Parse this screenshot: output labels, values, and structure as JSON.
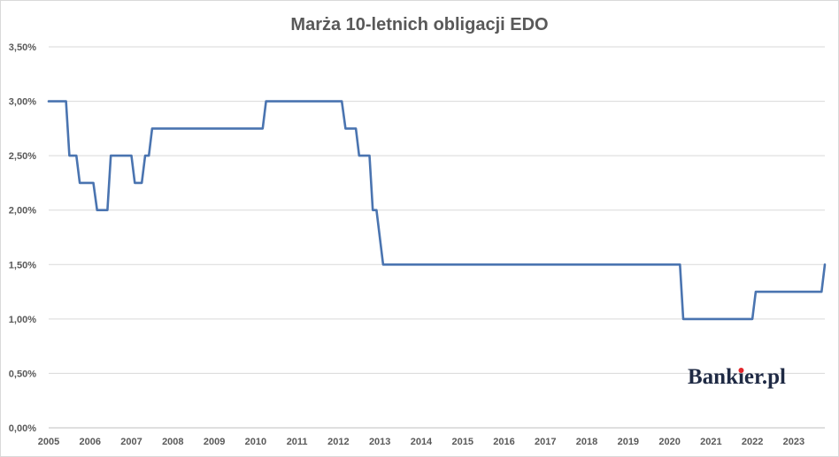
{
  "chart_data": {
    "type": "line",
    "title": "Marża 10-letnich obligacji EDO",
    "xlabel": "",
    "ylabel": "",
    "xlim": [
      2005.0,
      2023.75
    ],
    "ylim": [
      0,
      3.5
    ],
    "y_ticks": [
      0,
      0.5,
      1.0,
      1.5,
      2.0,
      2.5,
      3.0,
      3.5
    ],
    "y_tick_labels": [
      "0,00%",
      "0,50%",
      "1,00%",
      "1,50%",
      "2,00%",
      "2,50%",
      "3,00%",
      "3,50%"
    ],
    "x_ticks": [
      2005,
      2006,
      2007,
      2008,
      2009,
      2010,
      2011,
      2012,
      2013,
      2014,
      2015,
      2016,
      2017,
      2018,
      2019,
      2020,
      2021,
      2022,
      2023
    ],
    "x_tick_labels": [
      "2005",
      "2006",
      "2007",
      "2008",
      "2009",
      "2010",
      "2011",
      "2012",
      "2013",
      "2014",
      "2015",
      "2016",
      "2017",
      "2018",
      "2019",
      "2020",
      "2021",
      "2022",
      "2023"
    ],
    "grid": true,
    "legend": "none",
    "series": [
      {
        "color": "#4a74b0",
        "points": [
          [
            2005.0,
            3.0
          ],
          [
            2005.42,
            3.0
          ],
          [
            2005.5,
            2.5
          ],
          [
            2005.67,
            2.5
          ],
          [
            2005.75,
            2.25
          ],
          [
            2006.08,
            2.25
          ],
          [
            2006.17,
            2.0
          ],
          [
            2006.42,
            2.0
          ],
          [
            2006.5,
            2.5
          ],
          [
            2007.0,
            2.5
          ],
          [
            2007.08,
            2.25
          ],
          [
            2007.25,
            2.25
          ],
          [
            2007.33,
            2.5
          ],
          [
            2007.42,
            2.5
          ],
          [
            2007.5,
            2.75
          ],
          [
            2010.17,
            2.75
          ],
          [
            2010.25,
            3.0
          ],
          [
            2012.08,
            3.0
          ],
          [
            2012.17,
            2.75
          ],
          [
            2012.42,
            2.75
          ],
          [
            2012.5,
            2.5
          ],
          [
            2012.75,
            2.5
          ],
          [
            2012.83,
            2.0
          ],
          [
            2012.92,
            2.0
          ],
          [
            2013.08,
            1.5
          ],
          [
            2020.25,
            1.5
          ],
          [
            2020.33,
            1.0
          ],
          [
            2022.0,
            1.0
          ],
          [
            2022.08,
            1.25
          ],
          [
            2023.67,
            1.25
          ],
          [
            2023.75,
            1.5
          ]
        ]
      }
    ]
  },
  "logo": {
    "text": "Bankier.pl"
  }
}
